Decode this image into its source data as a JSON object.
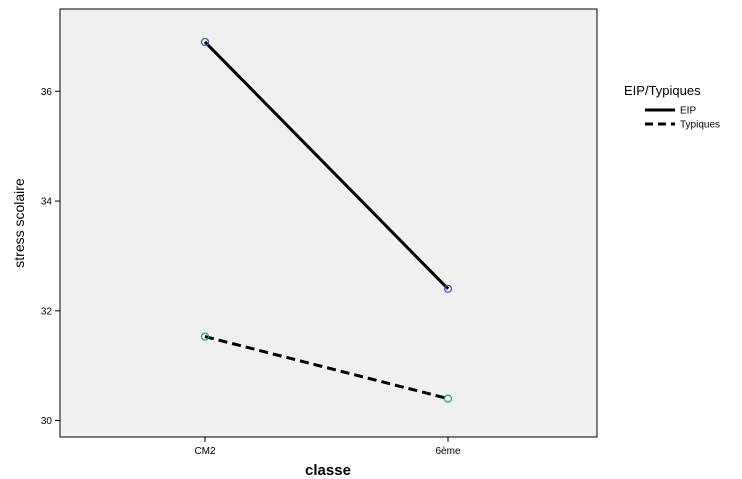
{
  "chart_data": {
    "type": "line",
    "xlabel": "classe",
    "ylabel": "stress scolaire",
    "categories": [
      "CM2",
      "6ème"
    ],
    "yticks": [
      30,
      32,
      34,
      36
    ],
    "ylim": [
      29.7,
      37.5
    ],
    "grid": false,
    "legend": {
      "title": "EIP/Typiques",
      "placement": "right"
    },
    "series": [
      {
        "name": "EIP",
        "values": [
          36.9,
          32.4
        ],
        "line_style": "solid",
        "line_color": "#000000",
        "marker_color": "#3b5bb5"
      },
      {
        "name": "Typiques",
        "values": [
          31.53,
          30.4
        ],
        "line_style": "dashed",
        "line_color": "#000000",
        "marker_color": "#2e9e4a"
      }
    ],
    "plot_background": "#f0f0f0"
  }
}
